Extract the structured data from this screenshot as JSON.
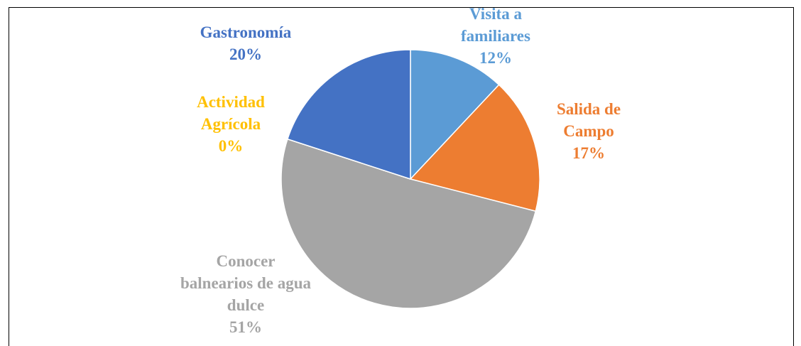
{
  "chart_data": {
    "type": "pie",
    "categories": [
      "Visita a familiares",
      "Salida de Campo",
      "Conocer balnearios de agua dulce",
      "Actividad Agrícola",
      "Gastronomía"
    ],
    "values": [
      12,
      17,
      51,
      0,
      20
    ],
    "value_labels": [
      "12%",
      "17%",
      "51%",
      "0%",
      "20%"
    ],
    "colors": [
      "#5b9bd5",
      "#ed7d31",
      "#a5a5a5",
      "#ffc000",
      "#4472c4"
    ]
  }
}
